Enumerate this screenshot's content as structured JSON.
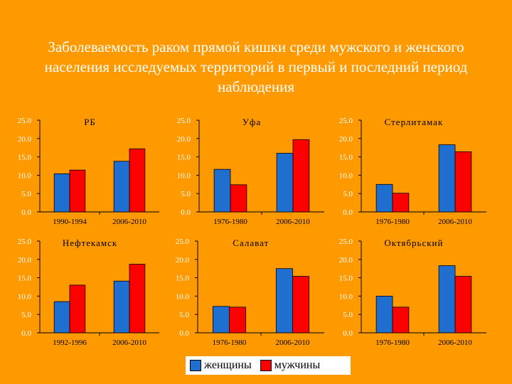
{
  "slide": {
    "title": "Заболеваемость раком прямой кишки среди мужского и женского населения исследуемых территорий в первый и последний период наблюдения"
  },
  "legend": {
    "women": "женщины",
    "men": "мужчины",
    "women_color": "#1F6FD0",
    "men_color": "#FF0000"
  },
  "chart_data": [
    {
      "type": "bar",
      "title": "РБ",
      "categories": [
        "1990-1994",
        "2006-2010"
      ],
      "series": [
        {
          "name": "женщины",
          "values": [
            10.4,
            13.8
          ]
        },
        {
          "name": "мужчины",
          "values": [
            11.4,
            17.2
          ]
        }
      ],
      "ylim": [
        0,
        25
      ],
      "ticks": [
        "0.0",
        "5.0",
        "10.0",
        "15.0",
        "20.0",
        "25.0"
      ]
    },
    {
      "type": "bar",
      "title": "Уфа",
      "categories": [
        "1976-1980",
        "2006-2010"
      ],
      "series": [
        {
          "name": "женщины",
          "values": [
            11.6,
            16.0
          ]
        },
        {
          "name": "мужчины",
          "values": [
            7.4,
            19.7
          ]
        }
      ],
      "ylim": [
        0,
        25
      ],
      "ticks": [
        "0.0",
        "5.0",
        "10.0",
        "15.0",
        "20.0",
        "25.0"
      ]
    },
    {
      "type": "bar",
      "title": "Стерлитамак",
      "categories": [
        "1976-1980",
        "2006-2010"
      ],
      "series": [
        {
          "name": "женщины",
          "values": [
            7.5,
            18.3
          ]
        },
        {
          "name": "мужчины",
          "values": [
            5.1,
            16.4
          ]
        }
      ],
      "ylim": [
        0,
        25
      ],
      "ticks": [
        "0.0",
        "5.0",
        "10.0",
        "15.0",
        "20.0",
        "25.0"
      ]
    },
    {
      "type": "bar",
      "title": "Нефтекамск",
      "categories": [
        "1992-1996",
        "2006-2010"
      ],
      "series": [
        {
          "name": "женщины",
          "values": [
            8.5,
            14.1
          ]
        },
        {
          "name": "мужчины",
          "values": [
            13.0,
            18.7
          ]
        }
      ],
      "ylim": [
        0,
        25
      ],
      "ticks": [
        "0.0",
        "5.0",
        "10.0",
        "15.0",
        "20.0",
        "25.0"
      ]
    },
    {
      "type": "bar",
      "title": "Салават",
      "categories": [
        "1976-1980",
        "2006-2010"
      ],
      "series": [
        {
          "name": "женщины",
          "values": [
            7.2,
            17.5
          ]
        },
        {
          "name": "мужчины",
          "values": [
            7.0,
            15.4
          ]
        }
      ],
      "ylim": [
        0,
        25
      ],
      "ticks": [
        "0.0",
        "5.0",
        "10.0",
        "15.0",
        "20.0",
        "25.0"
      ]
    },
    {
      "type": "bar",
      "title": "Октябрьский",
      "categories": [
        "1976-1980",
        "2006-2010"
      ],
      "series": [
        {
          "name": "женщины",
          "values": [
            10.0,
            18.3
          ]
        },
        {
          "name": "мужчины",
          "values": [
            7.0,
            15.4
          ]
        }
      ],
      "ylim": [
        0,
        25
      ],
      "ticks": [
        "0.0",
        "5.0",
        "10.0",
        "15.0",
        "20.0",
        "25.0"
      ]
    }
  ]
}
